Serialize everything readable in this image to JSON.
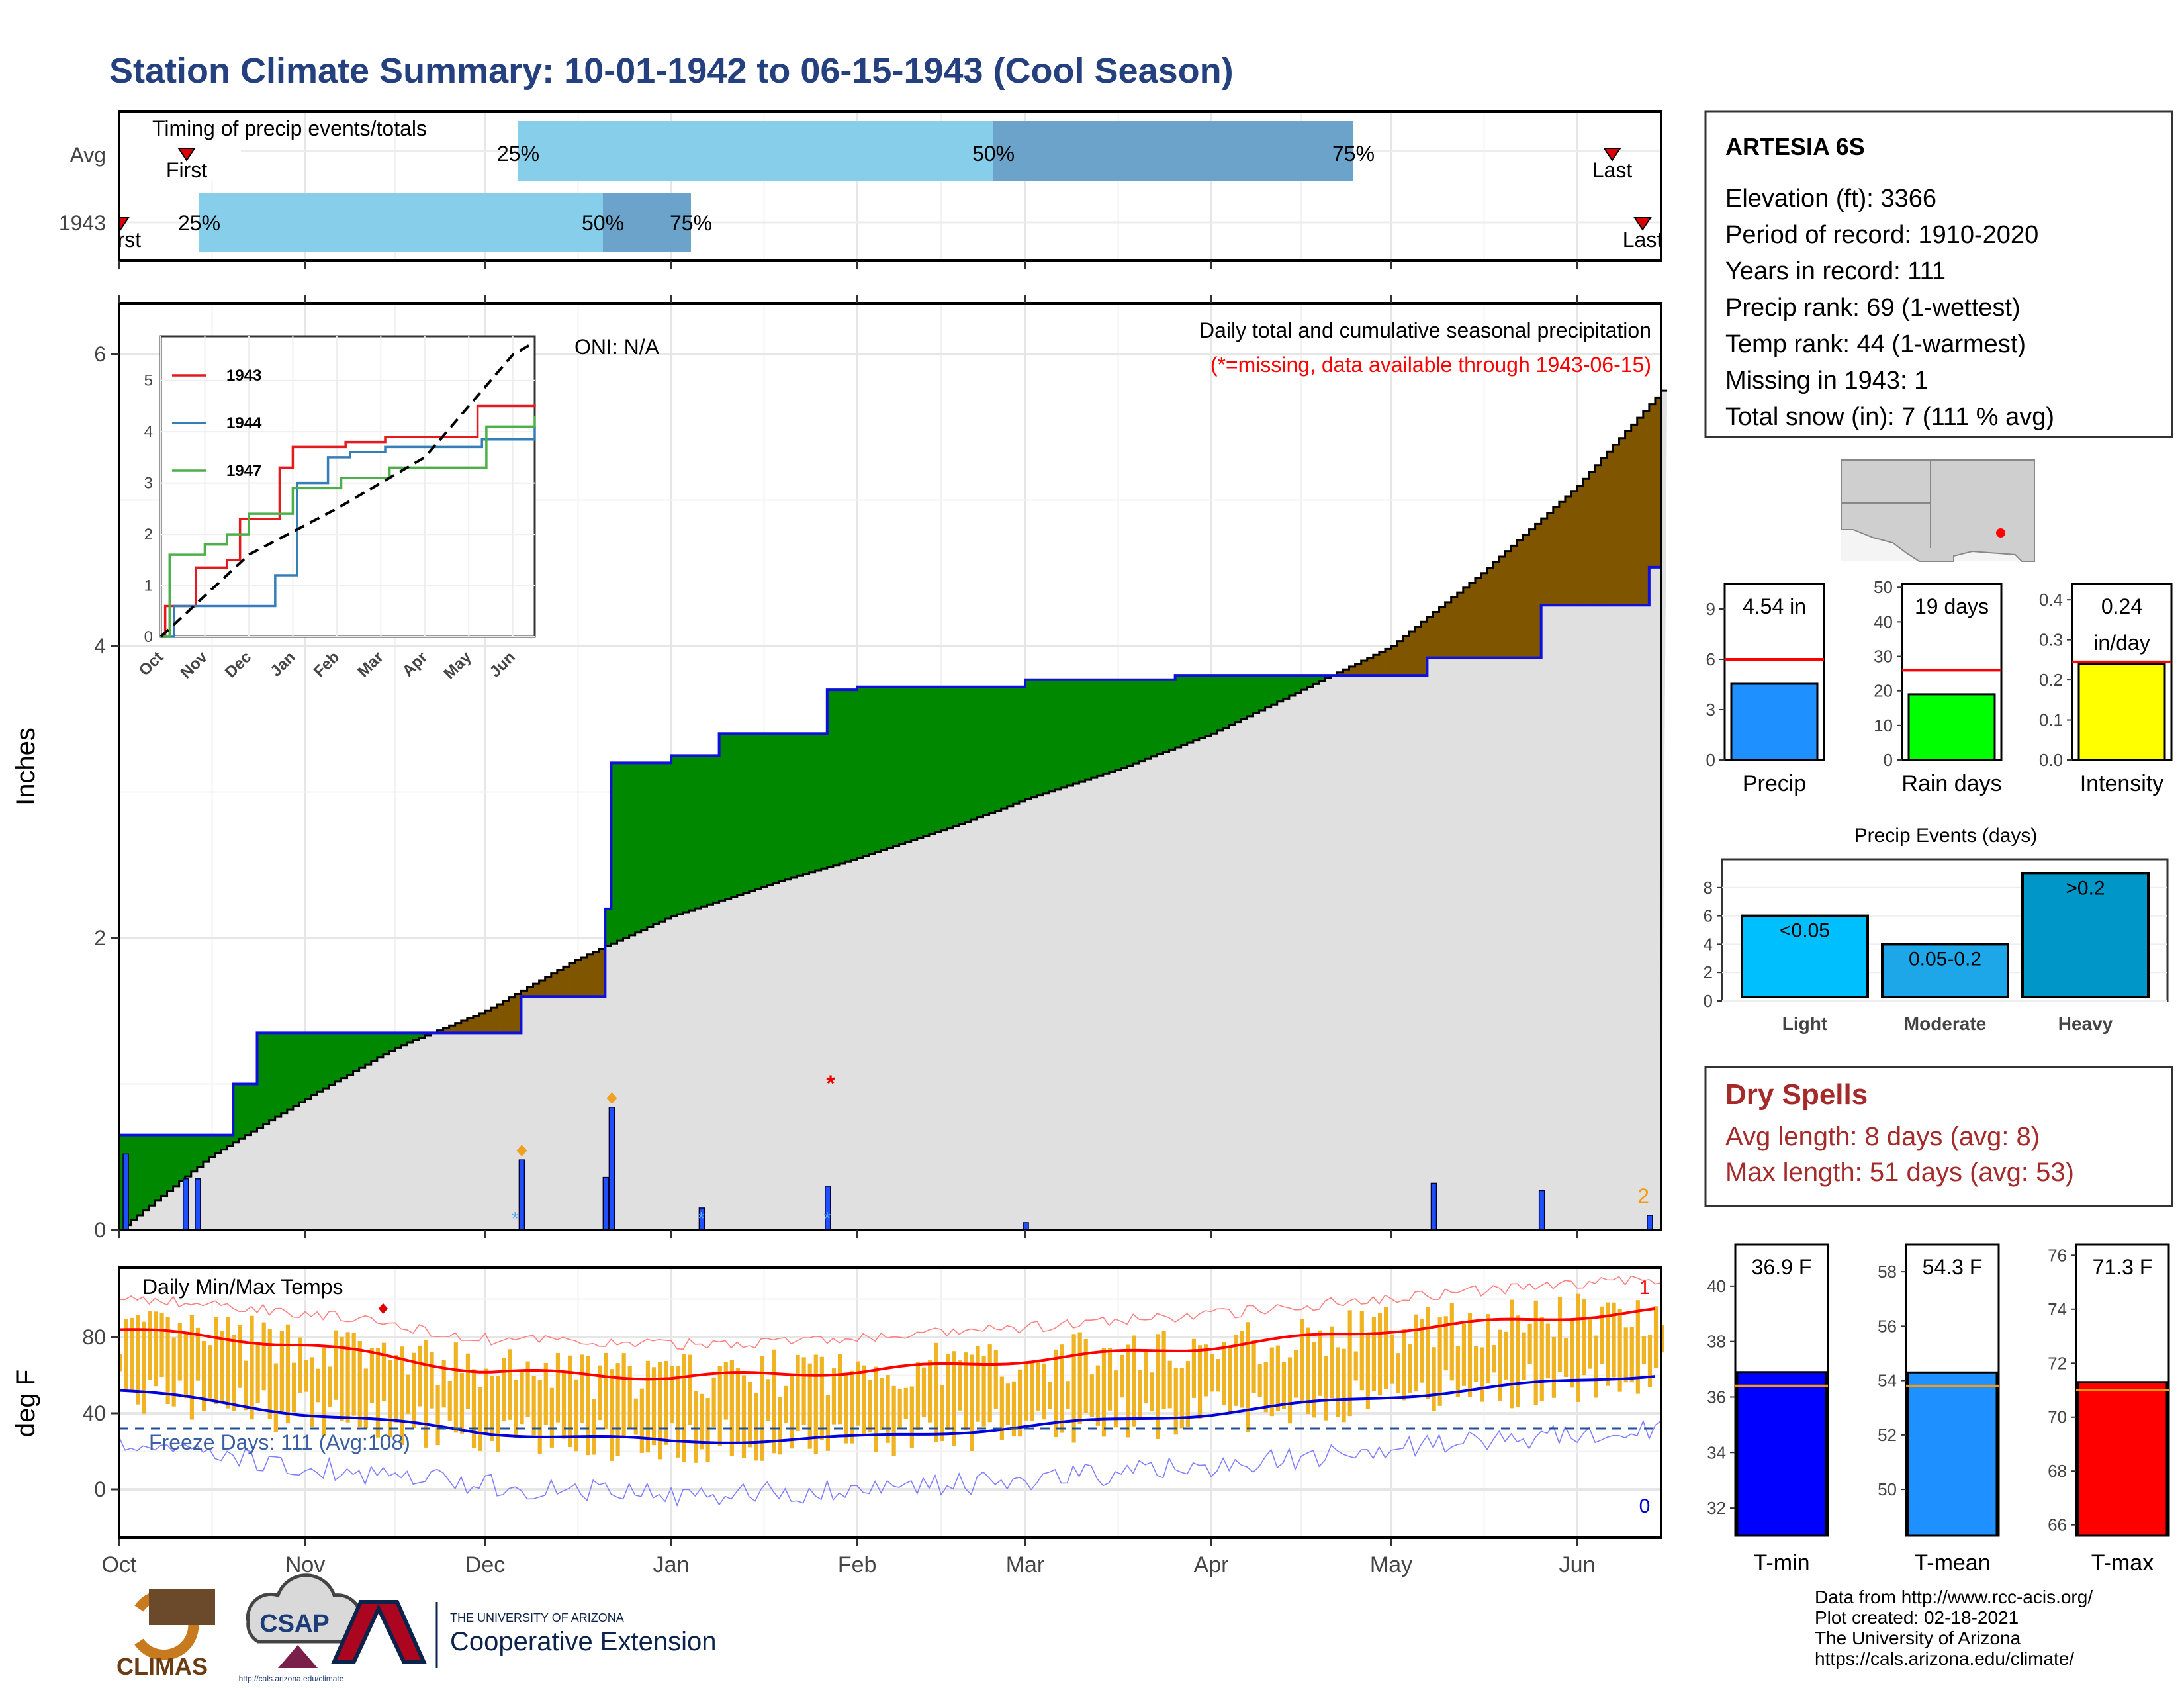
{
  "title": "Station Climate Summary: 10-01-1942 to 06-15-1943 (Cool Season)",
  "colors": {
    "title": "#25407f",
    "light_blue": "#87ceeb",
    "mid_blue": "#6ca3cb",
    "green": "#008800",
    "brown": "#7f5500",
    "grey_fill": "#e0e0e0",
    "bar_blue": "#1f4fff",
    "red": "#ff0000",
    "orange": "#f0b323",
    "tmin_bar": "#0000ff",
    "tmean_bar": "#1e90ff",
    "tmax_bar": "#ff0000",
    "rain_bar": "#00ff00",
    "int_bar": "#ffff00",
    "precip_bar": "#1e90ff",
    "dry_red": "#a52a2a"
  },
  "timing": {
    "label": "Timing of precip events/totals",
    "rows": [
      "Avg",
      "1943"
    ],
    "avg": {
      "first": "First",
      "last": "Last",
      "p25": "25%",
      "p50": "50%",
      "p75": "75%"
    },
    "y1943": {
      "first": "First",
      "last": "Last",
      "p25": "25%",
      "p50": "50%",
      "p75": "75%"
    }
  },
  "precip_panel": {
    "subtitle": "Daily total and cumulative seasonal precipitation",
    "missing_note": "(*=missing, data available through 1943-06-15)",
    "oni": "ONI: N/A",
    "ylabel": "Inches",
    "yticks": [
      "0",
      "2",
      "4",
      "6"
    ],
    "count_label": "2"
  },
  "inset": {
    "legend": [
      "1943",
      "1944",
      "1947"
    ],
    "xticks": [
      "Oct",
      "Nov",
      "Dec",
      "Jan",
      "Feb",
      "Mar",
      "Apr",
      "May",
      "Jun"
    ],
    "yticks": [
      "0",
      "1",
      "2",
      "3",
      "4",
      "5"
    ]
  },
  "temp_panel": {
    "label": "Daily Min/Max Temps",
    "ylabel": "deg F",
    "yticks": [
      "0",
      "40",
      "80"
    ],
    "freeze": "Freeze Days: 111 (Avg:108)",
    "max_count": "1",
    "min_count": "0"
  },
  "months": [
    "Oct",
    "Nov",
    "Dec",
    "Jan",
    "Feb",
    "Mar",
    "Apr",
    "May",
    "Jun"
  ],
  "station": {
    "name": "ARTESIA 6S",
    "lines": [
      "Elevation (ft): 3366",
      "Period of record: 1910-2020",
      "Years in record: 111",
      "Precip rank: 69 (1-wettest)",
      "Temp rank: 44 (1-warmest)",
      "Missing in 1943: 1",
      "Total snow (in): 7 (111 % avg)"
    ]
  },
  "mini_bars": [
    {
      "label": "Precip",
      "value_text": "4.54 in",
      "yticks": [
        "0",
        "3",
        "6",
        "9"
      ],
      "value": 4.54,
      "avg": 6.0,
      "ymax": 10.5
    },
    {
      "label": "Rain days",
      "value_text": "19 days",
      "yticks": [
        "0",
        "10",
        "20",
        "30",
        "40",
        "50"
      ],
      "value": 19,
      "avg": 26,
      "ymax": 51
    },
    {
      "label": "Intensity",
      "value_text": "0.24",
      "value_text2": "in/day",
      "yticks": [
        "0.0",
        "0.1",
        "0.2",
        "0.3",
        "0.4"
      ],
      "value": 0.24,
      "avg": 0.245,
      "ymax": 0.44
    }
  ],
  "events": {
    "title": "Precip Events (days)",
    "yticks": [
      "0",
      "2",
      "4",
      "6",
      "8"
    ],
    "bars": [
      {
        "label": "Light",
        "text": "<0.05",
        "value": 6
      },
      {
        "label": "Moderate",
        "text": "0.05-0.2",
        "value": 4
      },
      {
        "label": "Heavy",
        "text": ">0.2",
        "value": 9
      }
    ]
  },
  "dry": {
    "title": "Dry Spells",
    "avg": "Avg length: 8 days (avg: 8)",
    "max": "Max length: 51 days (avg: 53)"
  },
  "temp_bars": [
    {
      "label": "T-min",
      "value_text": "36.9 F",
      "yticks": [
        "32",
        "34",
        "36",
        "38",
        "40"
      ],
      "value": 36.9,
      "avg": 36.4,
      "ymin": 31,
      "ymax": 41.5
    },
    {
      "label": "T-mean",
      "value_text": "54.3 F",
      "yticks": [
        "50",
        "52",
        "54",
        "56",
        "58"
      ],
      "value": 54.3,
      "avg": 53.8,
      "ymin": 48.3,
      "ymax": 59
    },
    {
      "label": "T-max",
      "value_text": "71.3 F",
      "yticks": [
        "66",
        "68",
        "70",
        "72",
        "74",
        "76"
      ],
      "value": 71.3,
      "avg": 71.0,
      "ymin": 65.6,
      "ymax": 76.4
    }
  ],
  "credits": [
    "Data from http://www.rcc-acis.org/",
    "Plot created: 02-18-2021",
    "The University of Arizona",
    "https://cals.arizona.edu/climate/"
  ],
  "logos": {
    "climas": "CLIMAS",
    "csap": "CSAP",
    "csap_url": "http://cals.arizona.edu/climate",
    "ua_small": "THE UNIVERSITY OF ARIZONA",
    "ua_big": "Cooperative Extension"
  },
  "chart_data": [
    {
      "type": "area",
      "title": "Daily total and cumulative seasonal precipitation",
      "ylabel": "Inches",
      "ylim": [
        0,
        6.2
      ],
      "x_range": [
        "1942-10-01",
        "1943-06-15"
      ],
      "series": [
        {
          "name": "1943",
          "x": [
            "1942-10-01",
            "1942-10-20",
            "1942-10-24",
            "1942-12-06",
            "1942-12-07",
            "1942-12-21",
            "1942-12-22",
            "1943-01-01",
            "1943-01-09",
            "1943-01-27",
            "1943-02-01",
            "1943-03-01",
            "1943-03-26",
            "1943-05-07",
            "1943-05-26",
            "1943-06-13",
            "1943-06-15"
          ],
          "values": [
            0.65,
            1.0,
            1.35,
            1.35,
            1.6,
            2.2,
            3.2,
            3.25,
            3.4,
            3.7,
            3.72,
            3.77,
            3.8,
            3.92,
            4.28,
            4.54,
            4.54
          ]
        },
        {
          "name": "Avg",
          "x": [
            "1942-10-01",
            "1942-10-16",
            "1942-11-01",
            "1942-11-16",
            "1942-12-01",
            "1942-12-16",
            "1943-01-01",
            "1943-01-16",
            "1943-02-01",
            "1943-02-16",
            "1943-03-01",
            "1943-03-16",
            "1943-04-01",
            "1943-04-16",
            "1943-05-01",
            "1943-05-16",
            "1943-06-01",
            "1943-06-15"
          ],
          "values": [
            0.0,
            0.5,
            0.9,
            1.25,
            1.5,
            1.85,
            2.15,
            2.35,
            2.55,
            2.75,
            2.95,
            3.15,
            3.4,
            3.7,
            4.0,
            4.5,
            5.1,
            5.75
          ]
        }
      ],
      "daily_bars": {
        "x": [
          "1942-10-02",
          "1942-10-12",
          "1942-10-14",
          "1942-12-07",
          "1942-12-21",
          "1942-12-22",
          "1943-01-06",
          "1943-01-27",
          "1943-03-01",
          "1943-05-08",
          "1943-05-26",
          "1943-06-13"
        ],
        "values": [
          0.52,
          0.35,
          0.35,
          0.48,
          0.36,
          0.84,
          0.15,
          0.3,
          0.05,
          0.32,
          0.27,
          0.1
        ]
      },
      "missing": [
        "1943-01-27"
      ]
    },
    {
      "type": "line",
      "title": "",
      "x_range": [
        "Oct",
        "Jun"
      ],
      "ylim": [
        0,
        5.5
      ],
      "series": [
        {
          "name": "1943",
          "x": [
            0,
            0.1,
            0.8,
            1.5,
            1.8,
            2.7,
            3.0,
            4.2,
            5.1,
            7.2,
            8.5
          ],
          "values": [
            0,
            0.6,
            1.35,
            1.5,
            2.3,
            3.3,
            3.7,
            3.8,
            3.9,
            4.5,
            4.54
          ]
        },
        {
          "name": "1944",
          "x": [
            0,
            0.3,
            2.2,
            2.6,
            3.1,
            3.8,
            4.3,
            5.1,
            7.3,
            8.5
          ],
          "values": [
            0,
            0.6,
            0.6,
            1.2,
            3.0,
            3.5,
            3.6,
            3.7,
            3.85,
            4.1
          ]
        },
        {
          "name": "1947",
          "x": [
            0,
            0.2,
            1.0,
            1.5,
            2.0,
            3.0,
            4.1,
            5.2,
            7.4,
            8.5
          ],
          "values": [
            0,
            1.6,
            1.8,
            2.0,
            2.4,
            2.9,
            3.1,
            3.3,
            4.1,
            4.3
          ]
        },
        {
          "name": "Avg",
          "x": [
            0,
            2,
            4,
            6,
            8,
            8.5
          ],
          "values": [
            0,
            1.6,
            2.5,
            3.5,
            5.5,
            5.75
          ]
        }
      ]
    },
    {
      "type": "bar",
      "title": "Daily Min/Max Temps",
      "ylabel": "deg F",
      "ylim": [
        -30,
        110
      ],
      "series": [
        {
          "name": "Avg max",
          "x": [
            "1942-10-01",
            "1942-11-01",
            "1942-12-01",
            "1943-01-01",
            "1943-02-01",
            "1943-03-01",
            "1943-04-01",
            "1943-05-01",
            "1943-06-01",
            "1943-06-15"
          ],
          "values": [
            84,
            76,
            62,
            59,
            62,
            68,
            75,
            84,
            91,
            94
          ]
        },
        {
          "name": "Avg min",
          "x": [
            "1942-10-01",
            "1942-11-01",
            "1942-12-01",
            "1943-01-01",
            "1943-02-01",
            "1943-03-01",
            "1943-04-01",
            "1943-05-01",
            "1943-06-01",
            "1943-06-15"
          ],
          "values": [
            52,
            40,
            30,
            25,
            27,
            33,
            40,
            49,
            57,
            61
          ]
        }
      ],
      "freeze_line": 32
    }
  ]
}
